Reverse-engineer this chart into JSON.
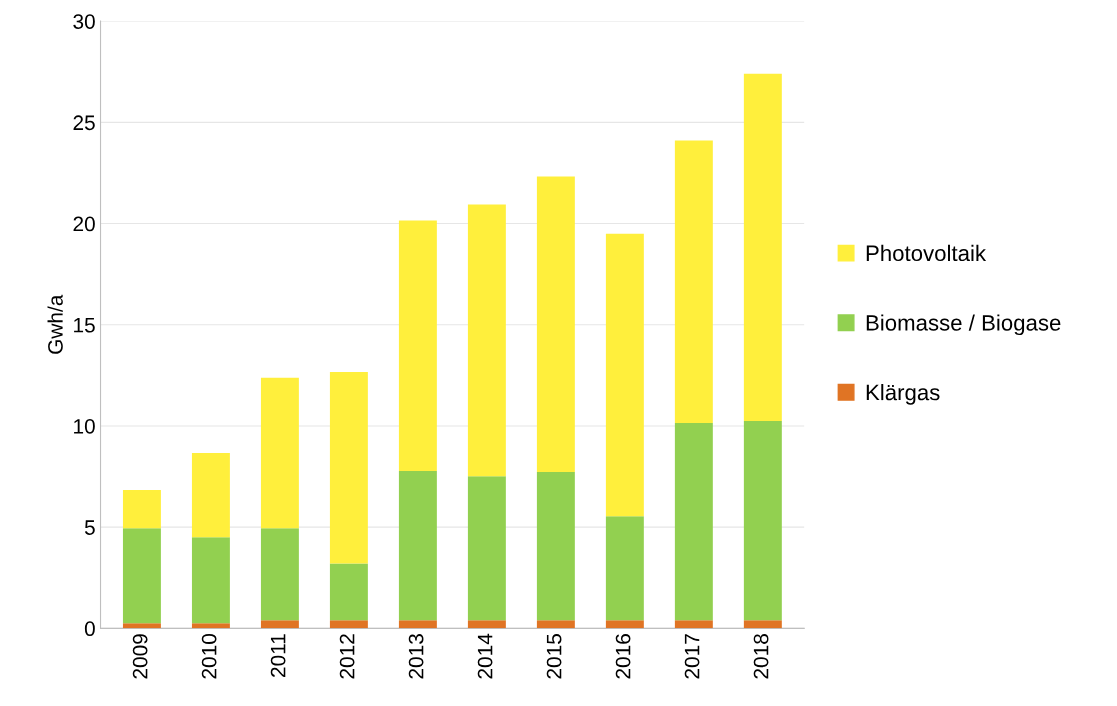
{
  "chart_data": {
    "type": "bar",
    "stacked": true,
    "ylabel": "Gwh/a",
    "categories": [
      "2009",
      "2010",
      "2011",
      "2012",
      "2013",
      "2014",
      "2015",
      "2016",
      "2017",
      "2018"
    ],
    "series": [
      {
        "name": "Klärgas",
        "color": "#e07424",
        "values": [
          0.25,
          0.25,
          0.4,
          0.4,
          0.4,
          0.4,
          0.4,
          0.4,
          0.4,
          0.4
        ]
      },
      {
        "name": "Biomasse / Biogase",
        "color": "#92d050",
        "values": [
          4.7,
          4.25,
          4.55,
          2.8,
          7.37,
          7.12,
          7.32,
          5.14,
          9.75,
          9.85
        ]
      },
      {
        "name": "Photovoltaik",
        "color": "#ffef3c",
        "values": [
          1.88,
          4.16,
          7.43,
          9.47,
          12.38,
          13.42,
          14.61,
          13.96,
          13.95,
          17.15
        ]
      }
    ],
    "ylim": [
      0,
      30
    ],
    "yticks": [
      0,
      5,
      10,
      15,
      20,
      25,
      30
    ],
    "grid": "y",
    "legend": "right"
  }
}
